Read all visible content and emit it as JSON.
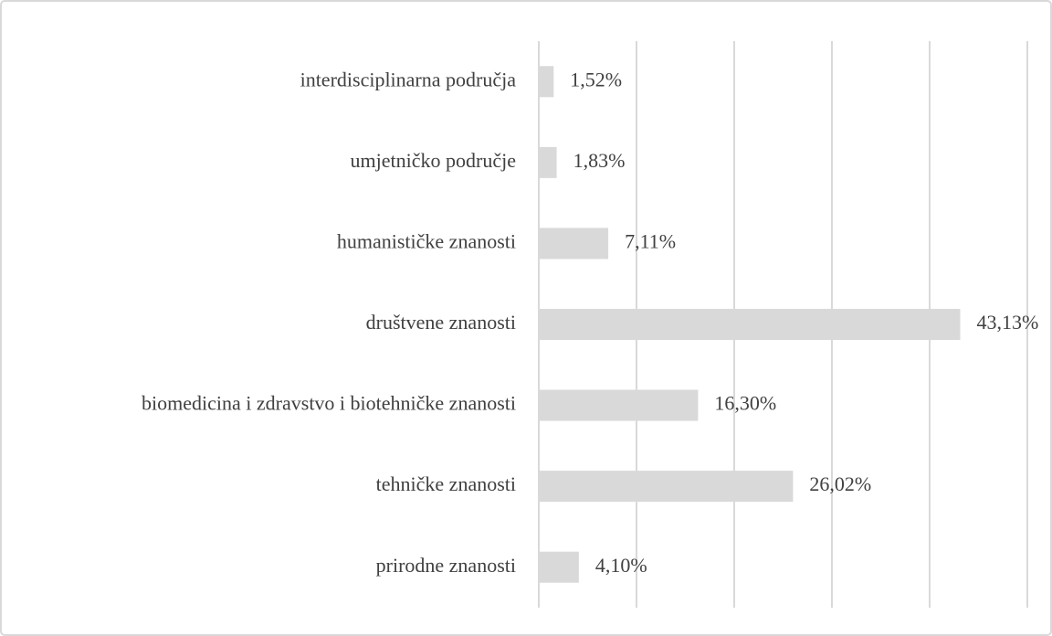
{
  "chart_data": {
    "type": "bar",
    "orientation": "horizontal",
    "categories": [
      "interdisciplinarna područja",
      "umjetničko područje",
      "humanističke znanosti",
      "društvene znanosti",
      "biomedicina i zdravstvo i biotehničke znanosti",
      "tehničke znanosti",
      "prirodne znanosti"
    ],
    "values": [
      1.52,
      1.83,
      7.11,
      43.13,
      16.3,
      26.02,
      4.1
    ],
    "value_labels": [
      "1,52%",
      "1,83%",
      "7,11%",
      "43,13%",
      "16,30%",
      "26,02%",
      "4,10%"
    ],
    "color": "#d9d9d9",
    "xlim": [
      0,
      50
    ],
    "xticks": [
      0,
      10,
      20,
      30,
      40,
      50
    ],
    "grid": true
  }
}
